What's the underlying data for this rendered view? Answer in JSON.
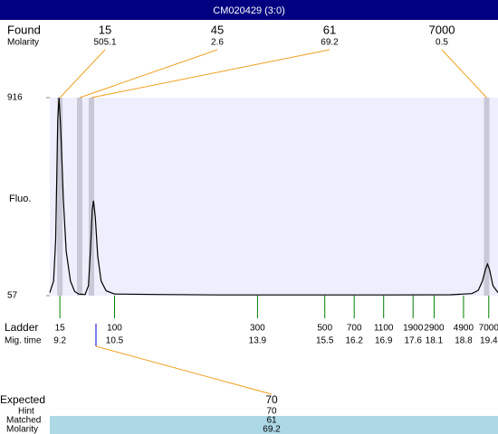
{
  "chart_data": {
    "type": "line",
    "title": "CM020429 (3:0)",
    "y_label": "Fluo.",
    "ylim": [
      57,
      916
    ],
    "yticks": [
      916,
      57
    ],
    "xlim": [
      8.96,
      19.62
    ],
    "x": [
      8.96,
      9.05,
      9.1,
      9.15,
      9.18,
      9.22,
      9.28,
      9.35,
      9.45,
      9.55,
      9.65,
      9.8,
      9.88,
      9.93,
      9.97,
      10.0,
      10.04,
      10.1,
      10.18,
      10.3,
      10.5,
      11.5,
      13,
      15,
      17,
      18.5,
      19.0,
      19.15,
      19.25,
      19.32,
      19.37,
      19.42,
      19.5,
      19.62
    ],
    "values": [
      70,
      120,
      300,
      820,
      916,
      780,
      480,
      250,
      120,
      75,
      64,
      62,
      100,
      260,
      430,
      469,
      400,
      230,
      120,
      78,
      64,
      62,
      60,
      60,
      60,
      61,
      66,
      80,
      120,
      170,
      194,
      170,
      100,
      70
    ],
    "found": {
      "label": "Found",
      "molarity_label": "Molarity",
      "peaks": [
        {
          "size": 15,
          "molarity": 505.1,
          "time": 9.2
        },
        {
          "size": 45,
          "molarity": 2.6,
          "time": 9.67
        },
        {
          "size": 61,
          "molarity": 69.2,
          "time": 9.95
        },
        {
          "size": 7000,
          "molarity": 0.5,
          "time": 19.35
        }
      ]
    },
    "ladder": {
      "label": "Ladder",
      "time_label": "Mig. time",
      "sizes": [
        15,
        100,
        300,
        500,
        700,
        1100,
        1900,
        2900,
        4900,
        7000
      ],
      "times": [
        9.2,
        10.5,
        13.9,
        15.5,
        16.2,
        16.9,
        17.6,
        18.1,
        18.8,
        19.4
      ]
    },
    "expected": {
      "label": "Expected",
      "value": 70,
      "hint_label": "Hint",
      "hint": 70,
      "matched_label": "Matched",
      "matched": 61,
      "molarity_label": "Molarity",
      "molarity": 69.2
    }
  }
}
